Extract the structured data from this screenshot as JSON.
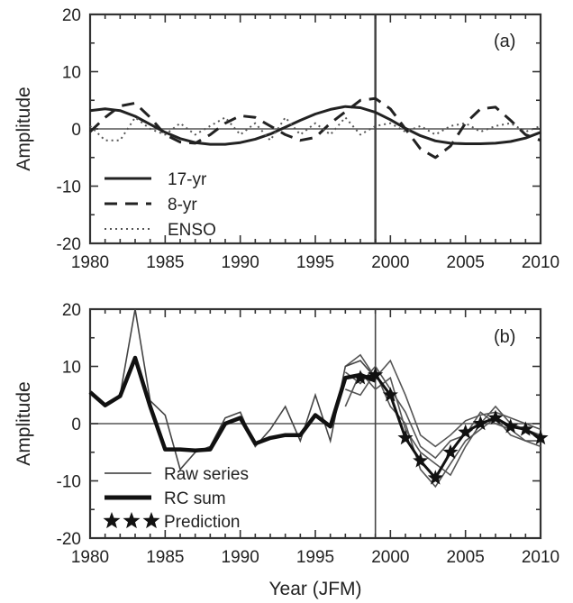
{
  "chart_data": [
    {
      "type": "line",
      "panel_label": "(a)",
      "ylabel": "Amplitude",
      "xlim": [
        1980,
        2010
      ],
      "ylim": [
        -20,
        20
      ],
      "xticks": [
        1980,
        1985,
        1990,
        1995,
        2000,
        2005,
        2010
      ],
      "yticks": [
        -20,
        -10,
        0,
        10,
        20
      ],
      "xtick_labels": [
        "1980",
        "1985",
        "1990",
        "1995",
        "2000",
        "2005",
        "2010"
      ],
      "ytick_labels": [
        "-20",
        "-10",
        "0",
        "10",
        "20"
      ],
      "vline_x": 1999,
      "zero_line": true,
      "legend_position": "bottom-left",
      "series": [
        {
          "name": "17-yr",
          "style": "solid",
          "x": [
            1980,
            1981,
            1982,
            1983,
            1984,
            1985,
            1986,
            1987,
            1988,
            1989,
            1990,
            1991,
            1992,
            1993,
            1994,
            1995,
            1996,
            1997,
            1998,
            1999,
            2000,
            2001,
            2002,
            2003,
            2004,
            2005,
            2006,
            2007,
            2008,
            2009,
            2010
          ],
          "y": [
            3.2,
            3.5,
            3.2,
            2.2,
            0.8,
            -0.6,
            -1.7,
            -2.4,
            -2.7,
            -2.7,
            -2.4,
            -1.8,
            -0.9,
            0.3,
            1.5,
            2.6,
            3.4,
            3.9,
            3.7,
            2.9,
            1.6,
            0.1,
            -1.2,
            -2.1,
            -2.5,
            -2.6,
            -2.6,
            -2.5,
            -2.2,
            -1.6,
            -0.6
          ]
        },
        {
          "name": "8-yr",
          "style": "dashed",
          "x": [
            1980,
            1981,
            1982,
            1983,
            1984,
            1985,
            1986,
            1987,
            1988,
            1989,
            1990,
            1991,
            1992,
            1993,
            1994,
            1995,
            1996,
            1997,
            1998,
            1999,
            2000,
            2001,
            2002,
            2003,
            2004,
            2005,
            2006,
            2007,
            2008,
            2009,
            2010
          ],
          "y": [
            -0.5,
            2.0,
            4.0,
            4.5,
            2.0,
            -1.0,
            -2.3,
            -2.5,
            -1.0,
            1.0,
            2.3,
            2.0,
            0.5,
            -1.0,
            -2.0,
            -1.5,
            1.0,
            3.0,
            5.0,
            5.3,
            3.5,
            0.0,
            -3.5,
            -5.0,
            -3.0,
            1.0,
            3.5,
            3.8,
            1.5,
            -1.0,
            -2.0
          ]
        },
        {
          "name": "ENSO",
          "style": "dotted",
          "x": [
            1980,
            1981,
            1982,
            1983,
            1984,
            1985,
            1986,
            1987,
            1988,
            1989,
            1990,
            1991,
            1992,
            1993,
            1994,
            1995,
            1996,
            1997,
            1998,
            1999,
            2000,
            2001,
            2002,
            2003,
            2004,
            2005,
            2006,
            2007,
            2008,
            2009,
            2010
          ],
          "y": [
            0.5,
            -2.0,
            -2.0,
            2.0,
            0.0,
            -1.0,
            1.0,
            -1.0,
            0.5,
            2.0,
            -1.0,
            1.0,
            -2.0,
            2.0,
            -1.0,
            1.0,
            -1.0,
            2.0,
            -1.0,
            0.5,
            1.0,
            -0.5,
            0.5,
            -1.0,
            0.5,
            1.0,
            -0.5,
            0.5,
            1.0,
            -0.5,
            0.5
          ]
        }
      ]
    },
    {
      "type": "line",
      "panel_label": "(b)",
      "ylabel": "Amplitude",
      "xlabel": "Year (JFM)",
      "xlim": [
        1980,
        2010
      ],
      "ylim": [
        -20,
        20
      ],
      "xticks": [
        1980,
        1985,
        1990,
        1995,
        2000,
        2005,
        2010
      ],
      "yticks": [
        -20,
        -10,
        0,
        10,
        20
      ],
      "xtick_labels": [
        "1980",
        "1985",
        "1990",
        "1995",
        "2000",
        "2005",
        "2010"
      ],
      "ytick_labels": [
        "-20",
        "-10",
        "0",
        "10",
        "20"
      ],
      "vline_x": 1999,
      "zero_line": true,
      "legend_position": "bottom-left",
      "series": [
        {
          "name": "Raw series",
          "style": "thin",
          "x": [
            1980,
            1981,
            1982,
            1983,
            1984,
            1985,
            1986,
            1987,
            1988,
            1989,
            1990,
            1991,
            1992,
            1993,
            1994,
            1995,
            1996,
            1997,
            1998,
            1999
          ],
          "y": [
            5.5,
            3.0,
            5.0,
            20.0,
            4.0,
            1.5,
            -8.0,
            -5.0,
            -4.0,
            1.0,
            2.0,
            -4.0,
            -1.0,
            3.0,
            -3.0,
            5.0,
            -3.0,
            10.0,
            11.0,
            8.0
          ]
        },
        {
          "name": "RC sum",
          "style": "thick",
          "x": [
            1980,
            1981,
            1982,
            1983,
            1984,
            1985,
            1986,
            1987,
            1988,
            1989,
            1990,
            1991,
            1992,
            1993,
            1994,
            1995,
            1996,
            1997,
            1998,
            1999
          ],
          "y": [
            5.5,
            3.2,
            4.8,
            11.5,
            3.0,
            -4.5,
            -4.5,
            -4.7,
            -4.5,
            0.0,
            1.0,
            -3.5,
            -2.5,
            -2.0,
            -2.0,
            1.5,
            -0.5,
            8.0,
            8.5,
            7.5
          ]
        },
        {
          "name": "Prediction",
          "style": "stars",
          "x": [
            1998,
            1999,
            2000,
            2001,
            2002,
            2003,
            2004,
            2005,
            2006,
            2007,
            2008,
            2009,
            2010
          ],
          "y": [
            8.0,
            8.5,
            5.0,
            -2.5,
            -6.5,
            -9.5,
            -5.0,
            -1.5,
            0.0,
            1.0,
            -0.5,
            -1.0,
            -2.5
          ]
        }
      ],
      "ensemble": [
        {
          "x": [
            1997,
            1998,
            1999,
            2000,
            2001,
            2002,
            2003,
            2004,
            2005,
            2006,
            2007,
            2008,
            2009,
            2010
          ],
          "y": [
            10.0,
            12.0,
            8.0,
            11.0,
            5.0,
            -2.0,
            -4.0,
            -2.0,
            0.5,
            1.5,
            2.0,
            1.0,
            0.0,
            -1.0
          ]
        },
        {
          "x": [
            1997,
            1998,
            1999,
            2000,
            2001,
            2002,
            2003,
            2004,
            2005,
            2006,
            2007,
            2008,
            2009,
            2010
          ],
          "y": [
            6.0,
            5.0,
            9.0,
            3.0,
            0.0,
            -8.0,
            -11.0,
            -7.0,
            -3.0,
            -1.0,
            1.0,
            -2.0,
            -3.0,
            -4.0
          ]
        },
        {
          "x": [
            1997,
            1998,
            1999,
            2000,
            2001,
            2002,
            2003,
            2004,
            2005,
            2006,
            2007,
            2008,
            2009,
            2010
          ],
          "y": [
            3.0,
            9.0,
            6.0,
            8.0,
            -1.0,
            -5.0,
            -7.0,
            -9.0,
            -4.0,
            0.0,
            3.0,
            0.0,
            -1.0,
            -2.0
          ]
        },
        {
          "x": [
            1997,
            1998,
            1999,
            2000,
            2001,
            2002,
            2003,
            2004,
            2005,
            2006,
            2007,
            2008,
            2009,
            2010
          ],
          "y": [
            9.0,
            7.0,
            10.0,
            6.0,
            2.0,
            -4.0,
            -6.0,
            -3.0,
            -2.0,
            2.0,
            0.0,
            -1.0,
            -3.0,
            -3.0
          ]
        }
      ]
    }
  ]
}
